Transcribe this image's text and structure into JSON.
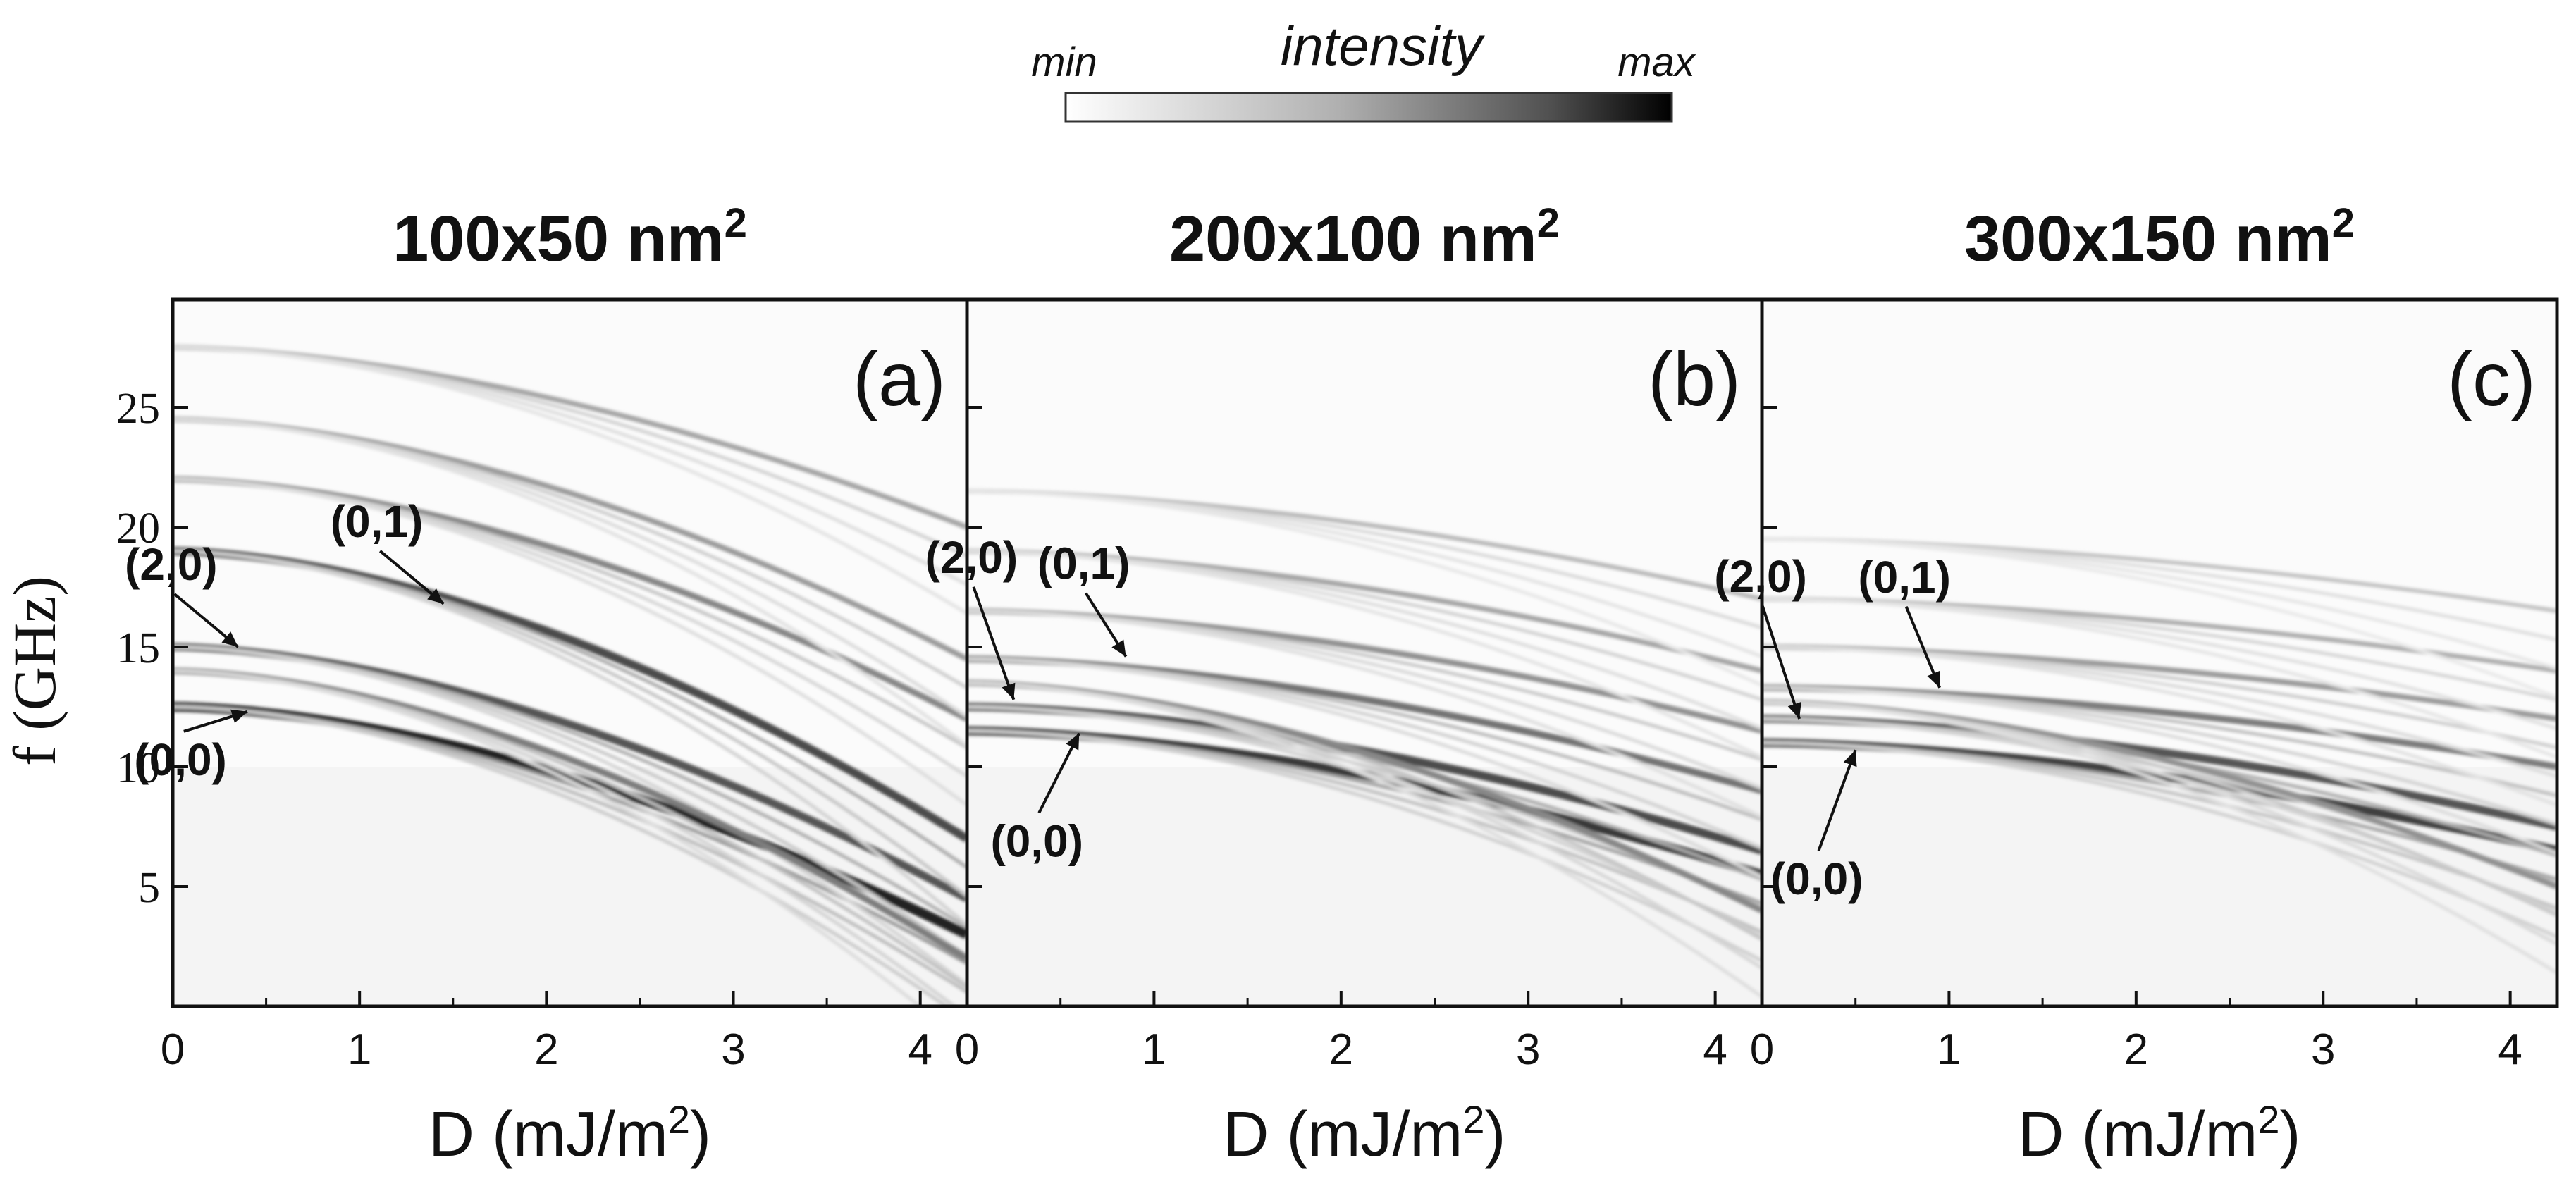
{
  "colorbar": {
    "label": "intensity",
    "min_label": "min",
    "max_label": "max",
    "color_min": "#ffffff",
    "color_max": "#000000"
  },
  "shared_axes": {
    "ylabel_text": "f (GHz)",
    "y_ticks": [
      "5",
      "10",
      "15",
      "20",
      "25"
    ],
    "x_ticks": [
      "0",
      "1",
      "2",
      "3",
      "4"
    ]
  },
  "chart_data": [
    {
      "type": "heatmap",
      "panel": "(a)",
      "title": "100x50 nm",
      "title_sup": "2",
      "xlabel": "D (mJ/m",
      "xlabel_sup": "2",
      "xlabel_close": ")",
      "ylabel": "f (GHz)",
      "xlim": [
        0,
        4.25
      ],
      "ylim": [
        0,
        29.5
      ],
      "x_ticks": [
        0,
        1,
        2,
        3,
        4
      ],
      "y_ticks": [
        5,
        10,
        15,
        20,
        25
      ],
      "modes": [
        {
          "label": "(0,0)",
          "f0": 12.5,
          "f_end": 3.0,
          "strength": 1.0
        },
        {
          "label": "(2,0)",
          "f0": 15.0,
          "f_end": 4.5,
          "strength": 0.75
        },
        {
          "label": "(0,1)",
          "f0": 19.0,
          "f_end": 7.0,
          "strength": 0.8
        },
        {
          "label": "",
          "f0": 14.0,
          "f_end": 2.0,
          "strength": 0.55
        },
        {
          "label": "",
          "f0": 22.0,
          "f_end": 12.0,
          "strength": 0.5
        },
        {
          "label": "",
          "f0": 27.5,
          "f_end": 20.0,
          "strength": 0.35
        },
        {
          "label": "",
          "f0": 24.5,
          "f_end": 14.5,
          "strength": 0.4
        }
      ],
      "annotations": [
        {
          "text": "(2,0)",
          "x": 0.35,
          "y": 15.0
        },
        {
          "text": "(0,1)",
          "x": 1.45,
          "y": 16.8
        },
        {
          "text": "(0,0)",
          "x": 0.4,
          "y": 12.3
        }
      ]
    },
    {
      "type": "heatmap",
      "panel": "(b)",
      "title": "200x100 nm",
      "title_sup": "2",
      "xlabel": "D (mJ/m",
      "xlabel_sup": "2",
      "xlabel_close": ")",
      "ylabel": "f (GHz)",
      "xlim": [
        0,
        4.25
      ],
      "ylim": [
        0,
        29.5
      ],
      "x_ticks": [
        0,
        1,
        2,
        3,
        4
      ],
      "y_ticks": [
        5,
        10,
        15,
        20,
        25
      ],
      "modes": [
        {
          "label": "(0,0)",
          "f0": 11.5,
          "f_end": 5.5,
          "strength": 0.9
        },
        {
          "label": "(2,0)",
          "f0": 12.5,
          "f_end": 6.5,
          "strength": 0.8
        },
        {
          "label": "(0,1)",
          "f0": 14.5,
          "f_end": 9.0,
          "strength": 0.6
        },
        {
          "label": "",
          "f0": 13.5,
          "f_end": 4.0,
          "strength": 0.5
        },
        {
          "label": "",
          "f0": 16.5,
          "f_end": 11.5,
          "strength": 0.45
        },
        {
          "label": "",
          "f0": 19.0,
          "f_end": 14.0,
          "strength": 0.35
        },
        {
          "label": "",
          "f0": 21.5,
          "f_end": 17.0,
          "strength": 0.25
        }
      ],
      "annotations": [
        {
          "text": "(2,0)",
          "x": 0.25,
          "y": 12.8
        },
        {
          "text": "(0,1)",
          "x": 0.85,
          "y": 14.6
        },
        {
          "text": "(0,0)",
          "x": 0.6,
          "y": 11.4
        }
      ]
    },
    {
      "type": "heatmap",
      "panel": "(c)",
      "title": "300x150 nm",
      "title_sup": "2",
      "xlabel": "D (mJ/m",
      "xlabel_sup": "2",
      "xlabel_close": ")",
      "ylabel": "f (GHz)",
      "xlim": [
        0,
        4.25
      ],
      "ylim": [
        0,
        29.5
      ],
      "x_ticks": [
        0,
        1,
        2,
        3,
        4
      ],
      "y_ticks": [
        5,
        10,
        15,
        20,
        25
      ],
      "modes": [
        {
          "label": "(0,0)",
          "f0": 11.0,
          "f_end": 6.5,
          "strength": 0.85
        },
        {
          "label": "(2,0)",
          "f0": 12.0,
          "f_end": 7.5,
          "strength": 0.75
        },
        {
          "label": "(0,1)",
          "f0": 13.3,
          "f_end": 10.0,
          "strength": 0.55
        },
        {
          "label": "",
          "f0": 12.7,
          "f_end": 5.0,
          "strength": 0.45
        },
        {
          "label": "",
          "f0": 15.0,
          "f_end": 12.0,
          "strength": 0.4
        },
        {
          "label": "",
          "f0": 17.0,
          "f_end": 14.0,
          "strength": 0.3
        },
        {
          "label": "",
          "f0": 19.5,
          "f_end": 16.5,
          "strength": 0.2
        }
      ],
      "annotations": [
        {
          "text": "(2,0)",
          "x": 0.2,
          "y": 12.0
        },
        {
          "text": "(0,1)",
          "x": 0.95,
          "y": 13.3
        },
        {
          "text": "(0,0)",
          "x": 0.5,
          "y": 10.7
        }
      ]
    }
  ]
}
